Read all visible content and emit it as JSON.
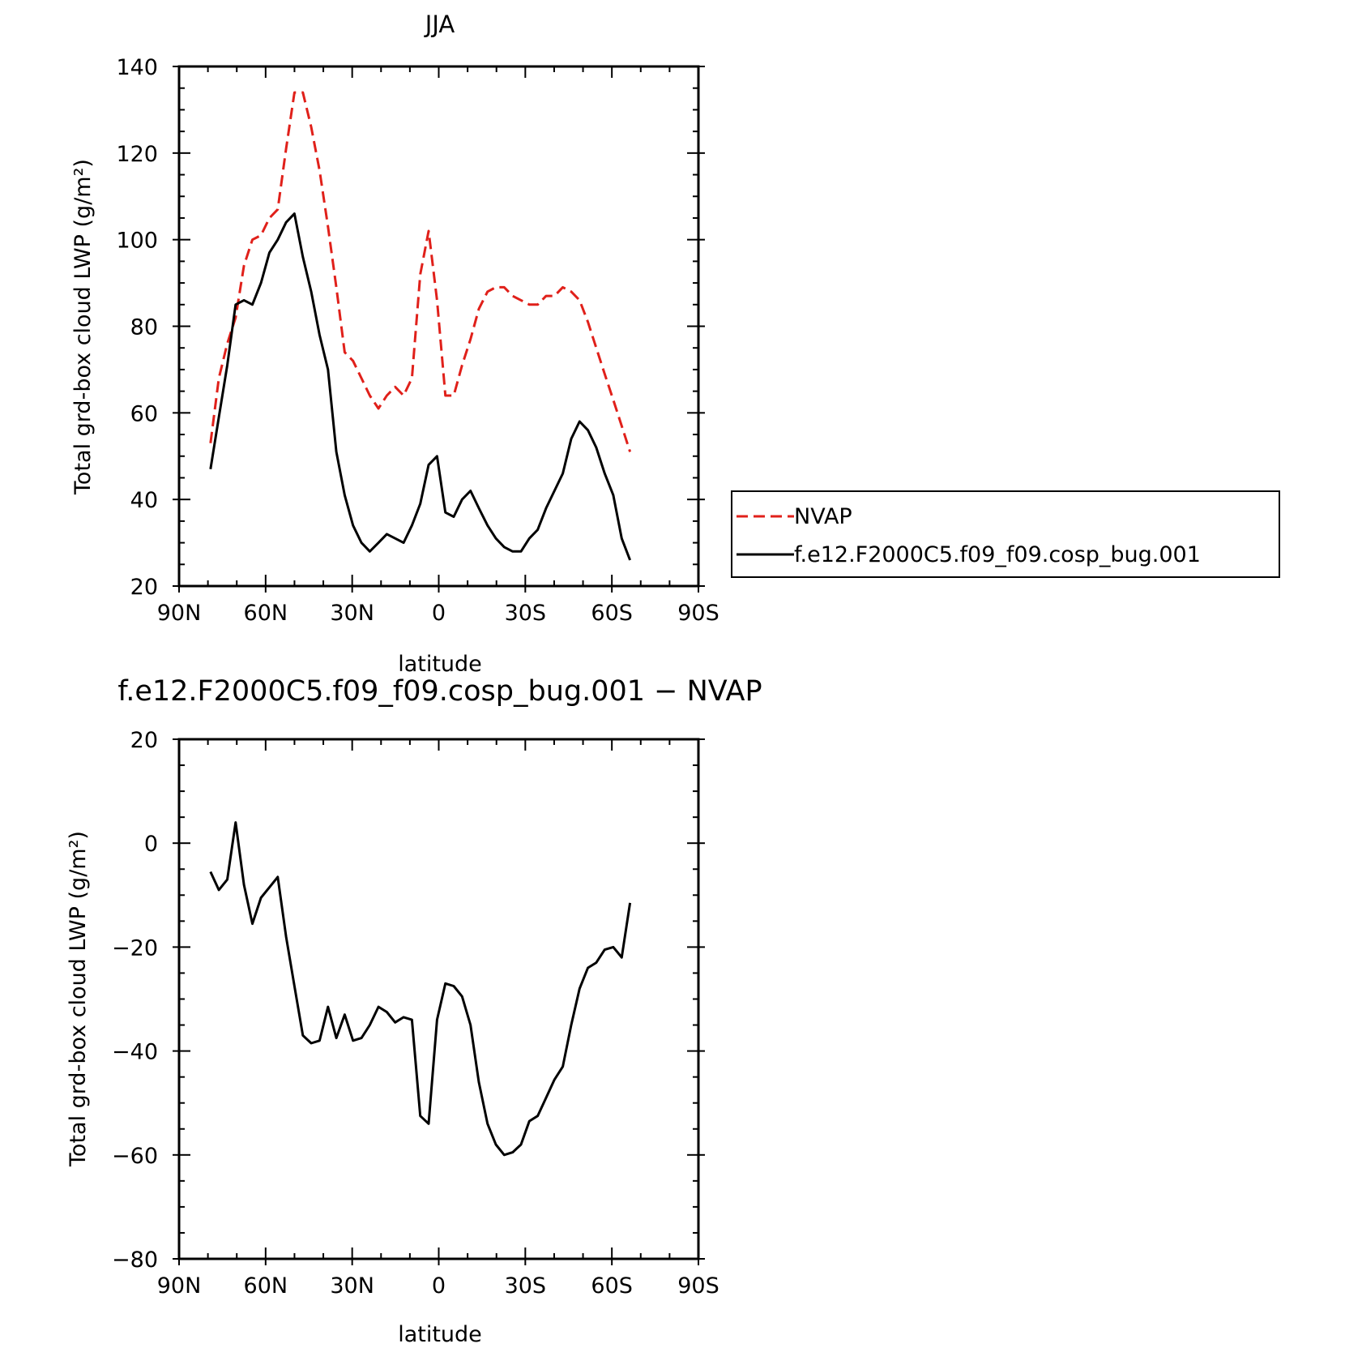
{
  "chart_data": [
    {
      "type": "line",
      "title": "JJA",
      "xlabel": "latitude",
      "ylabel": "Total grd-box cloud LWP (g/m²)",
      "xlim": [
        90,
        -90
      ],
      "ylim": [
        20,
        140
      ],
      "x_ticks": [
        90,
        60,
        30,
        0,
        -30,
        -60,
        -90
      ],
      "x_tick_labels": [
        "90N",
        "60N",
        "30N",
        "0",
        "30S",
        "60S",
        "90S"
      ],
      "y_ticks": [
        20,
        40,
        60,
        80,
        100,
        120,
        140
      ],
      "y_tick_labels": [
        "20",
        "40",
        "60",
        "80",
        "100",
        "120",
        "140"
      ],
      "legend_position": "right",
      "series": [
        {
          "name": "NVAP",
          "color": "#e0201a",
          "style": "dashed",
          "x": [
            79.1,
            76.2,
            73.3,
            70.4,
            67.5,
            64.6,
            61.6,
            58.7,
            55.8,
            52.9,
            50.0,
            47.1,
            44.2,
            41.3,
            38.4,
            35.5,
            32.6,
            29.7,
            26.8,
            23.9,
            20.9,
            18.0,
            15.1,
            12.2,
            9.3,
            6.4,
            3.5,
            0.6,
            -2.3,
            -5.2,
            -8.1,
            -11.0,
            -13.9,
            -16.9,
            -19.8,
            -22.7,
            -25.6,
            -28.5,
            -31.4,
            -34.3,
            -37.2,
            -40.1,
            -43.0,
            -45.9,
            -48.8,
            -51.7,
            -54.6,
            -57.5,
            -60.5,
            -63.4,
            -66.3
          ],
          "y": [
            53,
            68,
            76,
            82,
            94,
            100,
            101,
            105,
            107,
            121,
            134,
            134,
            126,
            116,
            103,
            89,
            74,
            72,
            68,
            64,
            61,
            64,
            66,
            64,
            68,
            92,
            102,
            86,
            64,
            64,
            71,
            77,
            84,
            88,
            89,
            89,
            87,
            86,
            85,
            85,
            87,
            87,
            89,
            88,
            86,
            81,
            75,
            69,
            63,
            57,
            51
          ]
        },
        {
          "name": "f.e12.F2000C5.f09_f09.cosp_bug.001",
          "color": "#000000",
          "style": "solid",
          "x": [
            79.1,
            76.2,
            73.3,
            70.4,
            67.5,
            64.6,
            61.6,
            58.7,
            55.8,
            52.9,
            50.0,
            47.1,
            44.2,
            41.3,
            38.4,
            35.5,
            32.6,
            29.7,
            26.8,
            23.9,
            20.9,
            18.0,
            15.1,
            12.2,
            9.3,
            6.4,
            3.5,
            0.6,
            -2.3,
            -5.2,
            -8.1,
            -11.0,
            -13.9,
            -16.9,
            -19.8,
            -22.7,
            -25.6,
            -28.5,
            -31.4,
            -34.3,
            -37.2,
            -40.1,
            -43.0,
            -45.9,
            -48.8,
            -51.7,
            -54.6,
            -57.5,
            -60.5,
            -63.4,
            -66.3
          ],
          "y": [
            47,
            59,
            71,
            85,
            86,
            85,
            90,
            97,
            100,
            104,
            106,
            96,
            88,
            78,
            70,
            51,
            41,
            34,
            30,
            28,
            30,
            32,
            31,
            30,
            34,
            39,
            48,
            50,
            37,
            36,
            40,
            42,
            38,
            34,
            31,
            29,
            28,
            28,
            31,
            33,
            38,
            42,
            46,
            54,
            58,
            56,
            52,
            46,
            41,
            31,
            26
          ]
        }
      ]
    },
    {
      "type": "line",
      "title": "f.e12.F2000C5.f09_f09.cosp_bug.001 − NVAP",
      "xlabel": "latitude",
      "ylabel": "Total grd-box cloud LWP (g/m²)",
      "xlim": [
        90,
        -90
      ],
      "ylim": [
        -80,
        20
      ],
      "x_ticks": [
        90,
        60,
        30,
        0,
        -30,
        -60,
        -90
      ],
      "x_tick_labels": [
        "90N",
        "60N",
        "30N",
        "0",
        "30S",
        "60S",
        "90S"
      ],
      "y_ticks": [
        -80,
        -60,
        -40,
        -20,
        0,
        20
      ],
      "y_tick_labels": [
        "−80",
        "−60",
        "−40",
        "−20",
        "0",
        "20"
      ],
      "series": [
        {
          "color": "#000000",
          "style": "solid",
          "x": [
            79.1,
            76.2,
            73.3,
            70.4,
            67.5,
            64.6,
            61.6,
            58.7,
            55.8,
            52.9,
            50.0,
            47.1,
            44.2,
            41.3,
            38.4,
            35.5,
            32.6,
            29.7,
            26.8,
            23.9,
            20.9,
            18.0,
            15.1,
            12.2,
            9.3,
            6.4,
            3.5,
            0.6,
            -2.3,
            -5.2,
            -8.1,
            -11.0,
            -13.9,
            -16.9,
            -19.8,
            -22.7,
            -25.6,
            -28.5,
            -31.4,
            -34.3,
            -37.2,
            -40.1,
            -43.0,
            -45.9,
            -48.8,
            -51.7,
            -54.6,
            -57.5,
            -60.5,
            -63.4,
            -66.3
          ],
          "y": [
            -5.5,
            -9,
            -7,
            4,
            -8,
            -15.5,
            -10.5,
            -8.5,
            -6.5,
            -18,
            -27.5,
            -37,
            -38.5,
            -38,
            -31.5,
            -37.5,
            -33,
            -38,
            -37.5,
            -35,
            -31.5,
            -32.5,
            -34.5,
            -33.5,
            -34,
            -52.5,
            -54,
            -34,
            -27,
            -27.5,
            -29.5,
            -35,
            -46,
            -54,
            -58,
            -60,
            -59.5,
            -58,
            -53.5,
            -52.5,
            -49,
            -45.5,
            -43,
            -35,
            -28,
            -24,
            -23,
            -20.5,
            -20,
            -22,
            -11.5
          ]
        }
      ]
    }
  ]
}
